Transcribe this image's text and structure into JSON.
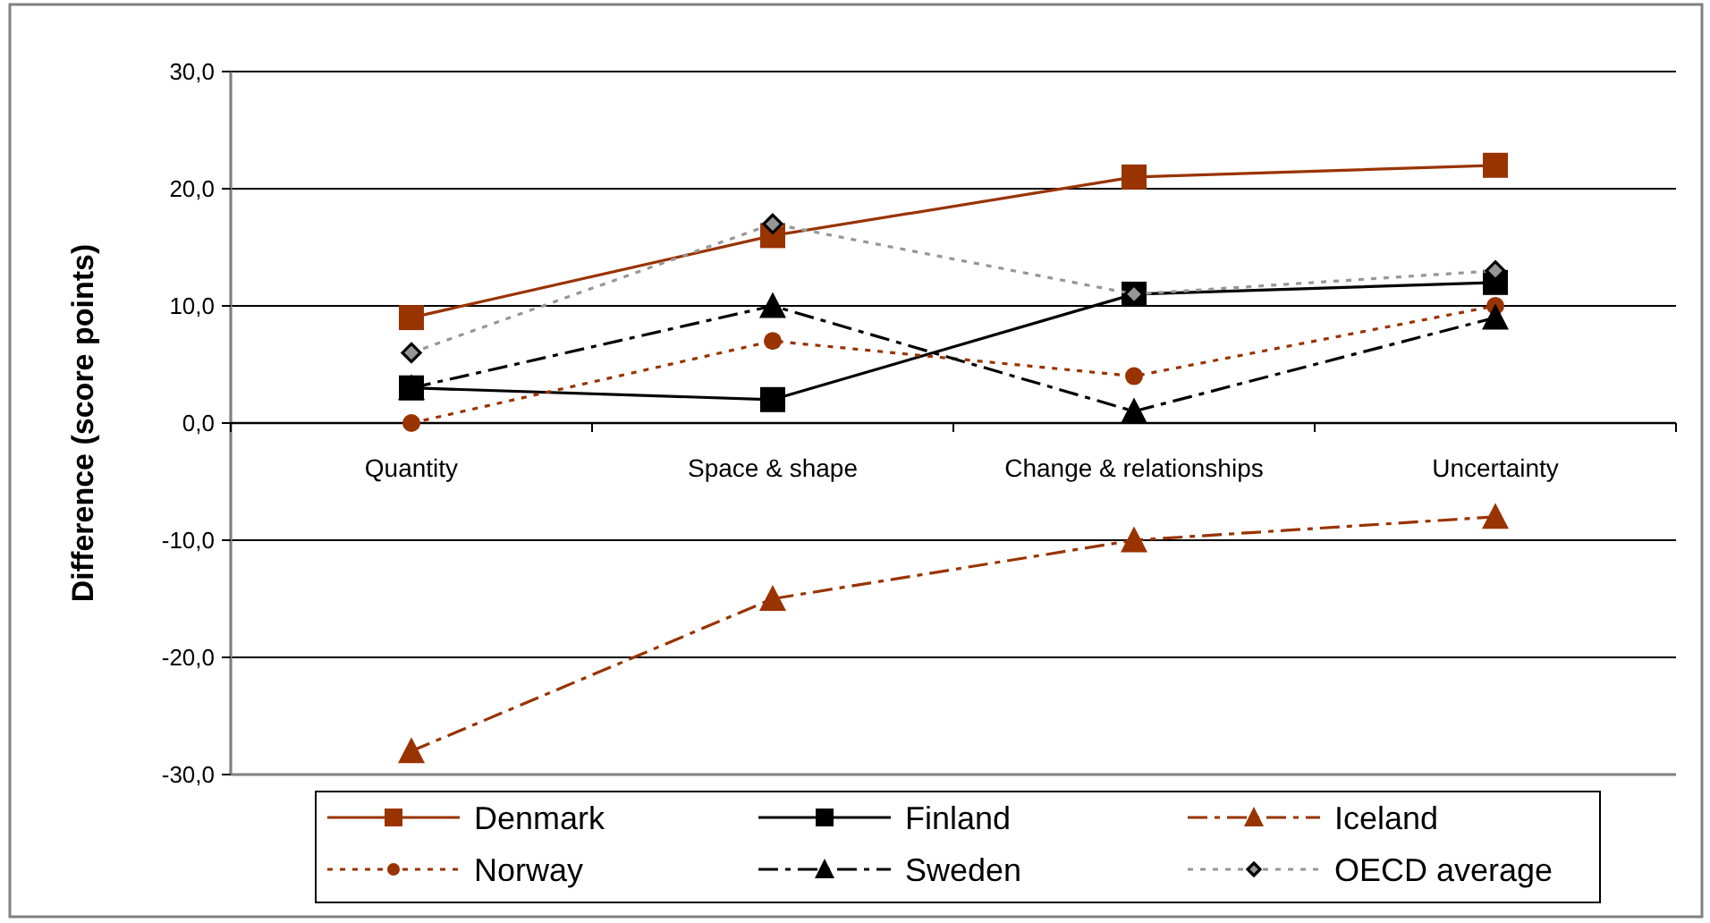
{
  "chart_data": {
    "type": "line",
    "ylabel": "Difference (score points)",
    "categories": [
      "Quantity",
      "Space & shape",
      "Change & relationships",
      "Uncertainty"
    ],
    "ylim": [
      -30,
      30
    ],
    "yticks": [
      {
        "value": -30,
        "label": "-30,0"
      },
      {
        "value": -20,
        "label": "-20,0"
      },
      {
        "value": -10,
        "label": "-10,0"
      },
      {
        "value": 0,
        "label": "0,0"
      },
      {
        "value": 10,
        "label": "10,0"
      },
      {
        "value": 20,
        "label": "20,0"
      },
      {
        "value": 30,
        "label": "30,0"
      }
    ],
    "grid": "y",
    "legend": "bottom",
    "series": [
      {
        "name": "Denmark",
        "color": "#993300",
        "values": [
          9,
          16,
          21,
          22
        ],
        "marker": "square",
        "line_style": "solid"
      },
      {
        "name": "Finland",
        "color": "#000000",
        "values": [
          3,
          2,
          11,
          12
        ],
        "marker": "square",
        "line_style": "solid"
      },
      {
        "name": "Iceland",
        "color": "#993300",
        "values": [
          -28,
          -15,
          -10,
          -8
        ],
        "marker": "triangle",
        "line_style": "dashdot"
      },
      {
        "name": "Norway",
        "color": "#993300",
        "values": [
          0,
          7,
          4,
          10
        ],
        "marker": "circle",
        "line_style": "dotted"
      },
      {
        "name": "Sweden",
        "color": "#000000",
        "values": [
          3,
          10,
          1,
          9
        ],
        "marker": "triangle",
        "line_style": "dashdot"
      },
      {
        "name": "OECD average",
        "color": "#969696",
        "values": [
          6,
          17,
          11,
          13
        ],
        "marker": "diamond",
        "line_style": "dotted"
      }
    ]
  }
}
